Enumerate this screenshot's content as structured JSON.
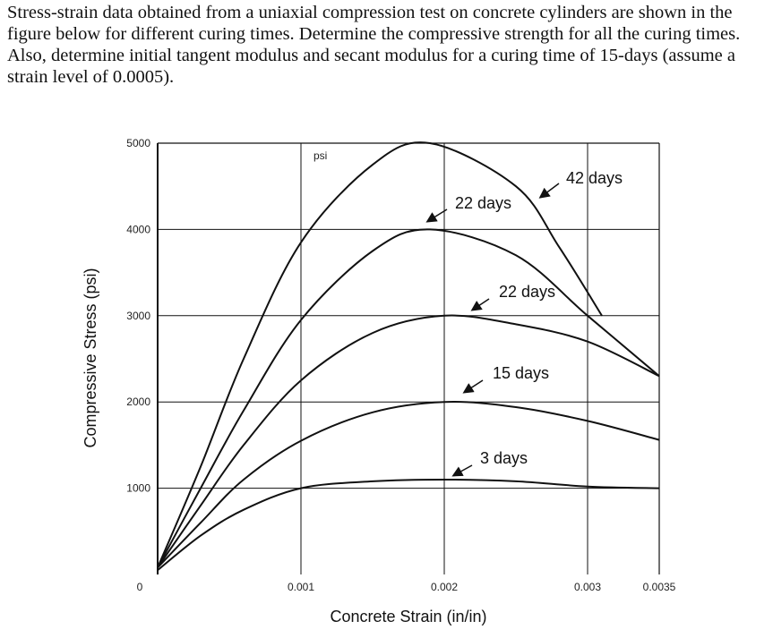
{
  "problem": {
    "text": "Stress-strain data obtained from a uniaxial compression test on concrete cylinders are shown in the figure below for different curing times. Determine the compressive strength for all the curing times. Also, determine initial tangent modulus and secant modulus for a curing time of 15-days (assume a strain level of 0.0005)."
  },
  "chart_data": {
    "type": "line",
    "title": "",
    "xlabel": "Concrete Strain (in/in)",
    "ylabel": "Compressive Stress (psi)",
    "unit_label": "psi",
    "xlim": [
      0,
      0.0035
    ],
    "ylim": [
      0,
      5000
    ],
    "x_ticks": [
      {
        "value": 0,
        "label": "0"
      },
      {
        "value": 0.001,
        "label": "0.001"
      },
      {
        "value": 0.002,
        "label": "0.002"
      },
      {
        "value": 0.003,
        "label": "0.003"
      },
      {
        "value": 0.0035,
        "label": "0.0035"
      }
    ],
    "y_ticks": [
      {
        "value": 1000,
        "label": "1000"
      },
      {
        "value": 2000,
        "label": "2000"
      },
      {
        "value": 3000,
        "label": "3000"
      },
      {
        "value": 4000,
        "label": "4000"
      },
      {
        "value": 5000,
        "label": "5000"
      }
    ],
    "grid": true,
    "series": [
      {
        "name": "3 days",
        "points": [
          [
            0,
            50
          ],
          [
            0.0003,
            450
          ],
          [
            0.0006,
            750
          ],
          [
            0.001,
            1000
          ],
          [
            0.0015,
            1080
          ],
          [
            0.002,
            1100
          ],
          [
            0.0025,
            1080
          ],
          [
            0.003,
            1020
          ],
          [
            0.0035,
            1000
          ]
        ]
      },
      {
        "name": "15 days",
        "points": [
          [
            0,
            80
          ],
          [
            0.0003,
            600
          ],
          [
            0.0006,
            1100
          ],
          [
            0.001,
            1550
          ],
          [
            0.0015,
            1880
          ],
          [
            0.002,
            2000
          ],
          [
            0.0025,
            1940
          ],
          [
            0.003,
            1780
          ],
          [
            0.0035,
            1560
          ]
        ]
      },
      {
        "name": "22 days",
        "points": [
          [
            0,
            80
          ],
          [
            0.0003,
            800
          ],
          [
            0.0006,
            1500
          ],
          [
            0.001,
            2250
          ],
          [
            0.0015,
            2800
          ],
          [
            0.002,
            3000
          ],
          [
            0.0025,
            2900
          ],
          [
            0.003,
            2700
          ],
          [
            0.0035,
            2300
          ]
        ]
      },
      {
        "name": "22 days",
        "points": [
          [
            0,
            80
          ],
          [
            0.0003,
            1000
          ],
          [
            0.0006,
            1900
          ],
          [
            0.001,
            2950
          ],
          [
            0.0015,
            3750
          ],
          [
            0.0019,
            4000
          ],
          [
            0.0025,
            3700
          ],
          [
            0.003,
            3000
          ],
          [
            0.0035,
            2300
          ]
        ]
      },
      {
        "name": "42 days",
        "points": [
          [
            0,
            80
          ],
          [
            0.0003,
            1250
          ],
          [
            0.0006,
            2500
          ],
          [
            0.001,
            3850
          ],
          [
            0.0015,
            4750
          ],
          [
            0.0019,
            5000
          ],
          [
            0.0025,
            4500
          ],
          [
            0.0028,
            3800
          ],
          [
            0.0031,
            3000
          ]
        ]
      }
    ],
    "annotations": [
      {
        "label": "3 days",
        "series_index": 0
      },
      {
        "label": "15 days",
        "series_index": 1
      },
      {
        "label": "22 days",
        "series_index": 2
      },
      {
        "label": "22 days",
        "series_index": 3
      },
      {
        "label": "42 days",
        "series_index": 4
      }
    ],
    "line_color": "#111111",
    "grid_color": "#111111"
  }
}
